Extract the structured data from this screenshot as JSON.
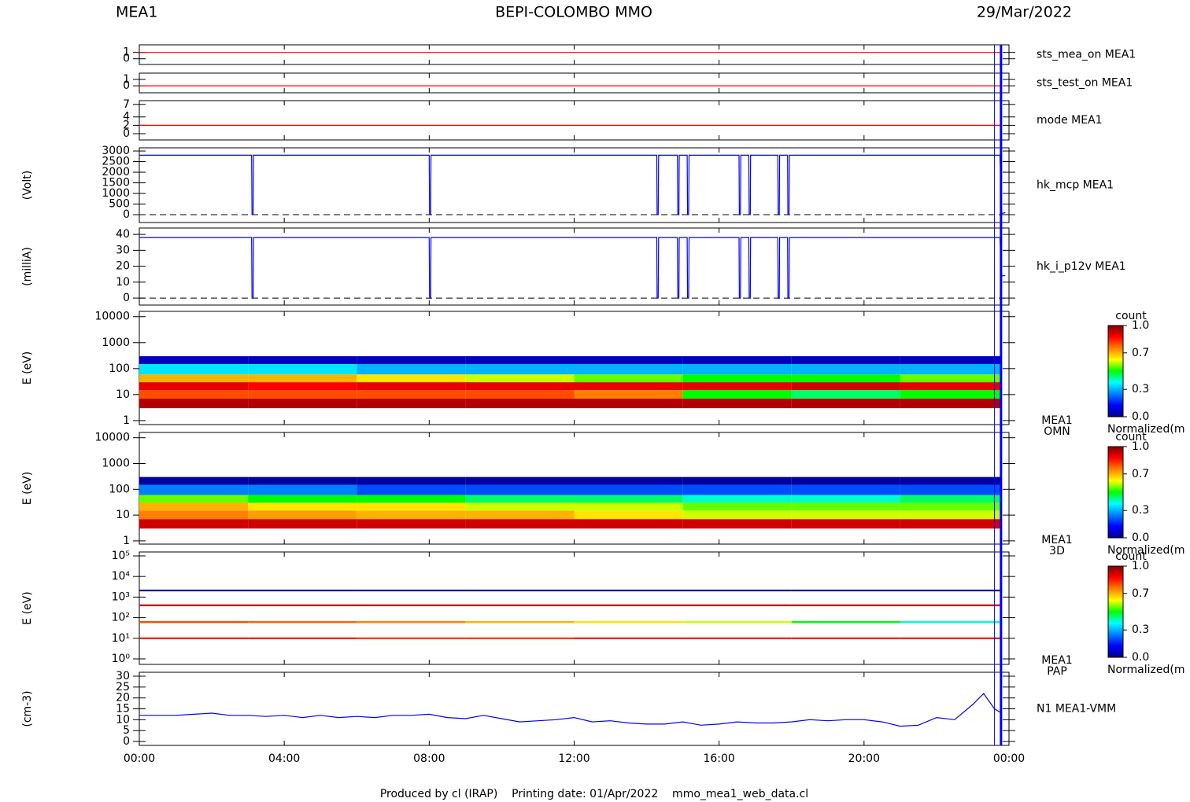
{
  "header": {
    "left": "MEA1",
    "center": "BEPI-COLOMBO MMO",
    "right": "29/Mar/2022"
  },
  "footer": "Produced by cl (IRAP)    Printing date: 01/Apr/2022    mmo_mea1_web_data.cl",
  "xlim": [
    0,
    24
  ],
  "xticks": [
    {
      "value": 0,
      "label": "00:00"
    },
    {
      "value": 4,
      "label": "04:00"
    },
    {
      "value": 8,
      "label": "08:00"
    },
    {
      "value": 12,
      "label": "12:00"
    },
    {
      "value": 16,
      "label": "16:00"
    },
    {
      "value": 20,
      "label": "20:00"
    },
    {
      "value": 24,
      "label": "00:00"
    }
  ],
  "vlines": [
    23.6,
    23.78
  ],
  "chart_data": [
    {
      "type": "line",
      "label": "sts_mea_on MEA1",
      "ylim": [
        -0.9,
        2.2
      ],
      "yticks": [
        0,
        1
      ],
      "series": [
        {
          "color": "#ff0000",
          "x": [
            0,
            23.78
          ],
          "values": [
            1,
            1
          ]
        }
      ]
    },
    {
      "type": "line",
      "label": "sts_test_on MEA1",
      "ylim": [
        -1.1,
        2
      ],
      "yticks": [
        0,
        1
      ],
      "series": [
        {
          "color": "#ff0000",
          "x": [
            0,
            23.78
          ],
          "values": [
            0,
            0
          ]
        }
      ]
    },
    {
      "type": "line",
      "label": "mode MEA1",
      "ylim": [
        -1.5,
        7.9
      ],
      "yticks": [
        0,
        2,
        4,
        7
      ],
      "series": [
        {
          "color": "#ff0000",
          "x": [
            0,
            23.78
          ],
          "values": [
            2,
            2
          ]
        }
      ]
    },
    {
      "type": "line",
      "label": "hk_mcp MEA1",
      "ylabel": "(Volt)",
      "ylim": [
        -370,
        3150
      ],
      "yticks": [
        0,
        500,
        1000,
        1500,
        2000,
        2500,
        3000
      ],
      "hline": 0,
      "series": [
        {
          "color": "#0000ff",
          "x": [
            0,
            3.1,
            3.11,
            3.14,
            3.15,
            8.0,
            8.01,
            8.04,
            8.05,
            14.28,
            14.29,
            14.32,
            14.33,
            14.85,
            14.86,
            14.89,
            14.9,
            15.12,
            15.13,
            15.16,
            15.17,
            16.55,
            16.56,
            16.59,
            16.6,
            16.82,
            16.83,
            16.86,
            16.87,
            17.62,
            17.63,
            17.66,
            17.67,
            17.89,
            17.9,
            17.93,
            17.94,
            23.75,
            23.8,
            23.9
          ],
          "values": [
            2800,
            2800,
            0,
            0,
            2800,
            2800,
            0,
            0,
            2800,
            2800,
            0,
            0,
            2800,
            2800,
            0,
            0,
            2800,
            2800,
            0,
            0,
            2800,
            2800,
            0,
            0,
            2800,
            2800,
            0,
            0,
            2800,
            2800,
            0,
            0,
            2800,
            2800,
            0,
            0,
            2800,
            2800,
            50,
            100
          ]
        }
      ]
    },
    {
      "type": "line",
      "label": "hk_i_p12v MEA1",
      "ylabel": "(milliA)",
      "ylim": [
        -4.4,
        44
      ],
      "yticks": [
        0,
        10,
        20,
        30,
        40
      ],
      "hline": 0,
      "series": [
        {
          "color": "#0000ff",
          "x": [
            0,
            3.1,
            3.11,
            3.14,
            3.15,
            8.0,
            8.01,
            8.04,
            8.05,
            14.28,
            14.29,
            14.32,
            14.33,
            14.85,
            14.86,
            14.89,
            14.9,
            15.12,
            15.13,
            15.16,
            15.17,
            16.55,
            16.56,
            16.59,
            16.6,
            16.82,
            16.83,
            16.86,
            16.87,
            17.62,
            17.63,
            17.66,
            17.67,
            17.89,
            17.9,
            17.93,
            17.94,
            23.75,
            23.8,
            23.9
          ],
          "values": [
            38,
            38,
            0,
            0,
            38,
            38,
            0,
            0,
            38,
            38,
            0,
            0,
            38,
            38,
            0,
            0,
            38,
            38,
            0,
            0,
            38,
            38,
            0,
            0,
            38,
            38,
            0,
            0,
            38,
            38,
            0,
            0,
            38,
            38,
            0,
            0,
            38,
            38,
            14,
            14
          ]
        }
      ]
    },
    {
      "type": "heatmap",
      "label_lines": [
        "MEA1",
        "OMN"
      ],
      "ylabel": "E (eV)",
      "log": true,
      "ylim": [
        0.7,
        16000
      ],
      "yticks": [
        1,
        10,
        100,
        1000,
        10000
      ],
      "x": [
        0,
        3,
        6,
        9,
        12,
        15,
        18,
        21,
        23.78
      ],
      "y": [
        3,
        7,
        15,
        30,
        60,
        150,
        300
      ],
      "z": [
        [
          0.95,
          0.95,
          0.95,
          0.95,
          0.95,
          0.95,
          0.95,
          0.95
        ],
        [
          0.8,
          0.8,
          0.8,
          0.8,
          0.75,
          0.5,
          0.45,
          0.5
        ],
        [
          0.9,
          0.88,
          0.9,
          0.9,
          0.9,
          0.9,
          0.92,
          0.9
        ],
        [
          0.7,
          0.7,
          0.65,
          0.6,
          0.55,
          0.5,
          0.5,
          0.55
        ],
        [
          0.35,
          0.35,
          0.3,
          0.3,
          0.3,
          0.3,
          0.3,
          0.3
        ],
        [
          0.05,
          0.05,
          0.05,
          0.05,
          0.05,
          0.05,
          0.05,
          0.05
        ]
      ],
      "colorbar": {
        "title": "count",
        "label": "Normalized(m",
        "ticks": [
          {
            "value": 0,
            "label": "0.0"
          },
          0.3,
          0.7,
          {
            "value": 1,
            "label": "1.0"
          }
        ]
      }
    },
    {
      "type": "heatmap",
      "label_lines": [
        "MEA1",
        "3D"
      ],
      "ylabel": "E (eV)",
      "log": true,
      "ylim": [
        0.75,
        16000
      ],
      "yticks": [
        1,
        10,
        100,
        1000,
        10000
      ],
      "x": [
        0,
        3,
        6,
        9,
        12,
        15,
        18,
        21,
        23.78
      ],
      "y": [
        3,
        7,
        15,
        30,
        60,
        150,
        300
      ],
      "z": [
        [
          0.92,
          0.92,
          0.92,
          0.92,
          0.92,
          0.92,
          0.92,
          0.92
        ],
        [
          0.75,
          0.72,
          0.7,
          0.7,
          0.65,
          0.6,
          0.6,
          0.6
        ],
        [
          0.7,
          0.65,
          0.65,
          0.6,
          0.6,
          0.55,
          0.55,
          0.55
        ],
        [
          0.55,
          0.5,
          0.5,
          0.45,
          0.45,
          0.4,
          0.4,
          0.45
        ],
        [
          0.25,
          0.25,
          0.2,
          0.2,
          0.2,
          0.2,
          0.2,
          0.2
        ],
        [
          0.02,
          0.02,
          0.02,
          0.02,
          0.02,
          0.02,
          0.02,
          0.02
        ]
      ],
      "colorbar": {
        "title": "count",
        "label": "Normalized(m",
        "ticks": [
          {
            "value": 0,
            "label": "0.0"
          },
          0.3,
          0.7,
          {
            "value": 1,
            "label": "1.0"
          }
        ]
      }
    },
    {
      "type": "heatmap",
      "label_lines": [
        "MEA1",
        "PAP"
      ],
      "ylabel": "E (eV)",
      "log": true,
      "ylim": [
        0.54,
        155000
      ],
      "yticks": [
        {
          "value": 1,
          "label": "10⁰"
        },
        {
          "value": 10,
          "label": "10¹"
        },
        {
          "value": 100,
          "label": "10²"
        },
        {
          "value": 1000,
          "label": "10³"
        },
        {
          "value": 10000,
          "label": "10⁴"
        },
        {
          "value": 100000,
          "label": "10⁵"
        }
      ],
      "x": [
        0,
        3,
        6,
        9,
        12,
        15,
        18,
        21,
        23.78
      ],
      "y": [
        9,
        11,
        55,
        68,
        360,
        440,
        1900,
        2300
      ],
      "z": [
        [
          0.85,
          0.85,
          0.82,
          0.82,
          0.85,
          0.85,
          0.85,
          0.85
        ],
        null,
        [
          0.8,
          0.78,
          0.75,
          0.7,
          0.65,
          0.6,
          0.5,
          0.4
        ],
        null,
        [
          0.93,
          0.93,
          0.93,
          0.93,
          0.93,
          0.93,
          0.93,
          0.93
        ],
        null,
        [
          0.0,
          0.0,
          0.0,
          0.0,
          0.0,
          0.0,
          0.0,
          0.0
        ]
      ],
      "colorbar": {
        "title": "count",
        "label": "Normalized(m",
        "ticks": [
          {
            "value": 0,
            "label": "0.0"
          },
          0.3,
          0.7,
          {
            "value": 1,
            "label": "1.0"
          }
        ]
      }
    },
    {
      "type": "line",
      "label": "N1 MEA1-VMM",
      "ylabel": "(cm-3)",
      "ylim": [
        -1.8,
        31.8
      ],
      "yticks": [
        0,
        5,
        10,
        15,
        20,
        25,
        30
      ],
      "series": [
        {
          "color": "#0000ff",
          "x": [
            0,
            0.5,
            1,
            1.5,
            2,
            2.5,
            3,
            3.5,
            4,
            4.5,
            5,
            5.5,
            6,
            6.5,
            7,
            7.5,
            8,
            8.5,
            9,
            9.5,
            10,
            10.5,
            11,
            11.5,
            12,
            12.5,
            13,
            13.5,
            14,
            14.5,
            15,
            15.5,
            16,
            16.5,
            17,
            17.5,
            18,
            18.5,
            19,
            19.5,
            20,
            20.5,
            21,
            21.5,
            22,
            22.5,
            23,
            23.3,
            23.6,
            23.8
          ],
          "values": [
            12,
            12,
            12,
            12.5,
            13,
            12,
            12,
            11.5,
            12,
            11,
            12,
            11,
            11.5,
            11,
            12,
            12,
            12.5,
            11,
            10.5,
            12,
            10.5,
            9,
            9.5,
            10,
            11,
            9,
            9.5,
            8.5,
            8,
            8,
            9,
            7.5,
            8,
            9,
            8.5,
            8.5,
            9,
            10,
            9.5,
            10,
            10,
            9,
            7,
            7.5,
            11,
            10,
            17,
            22,
            15,
            13
          ]
        }
      ]
    }
  ]
}
